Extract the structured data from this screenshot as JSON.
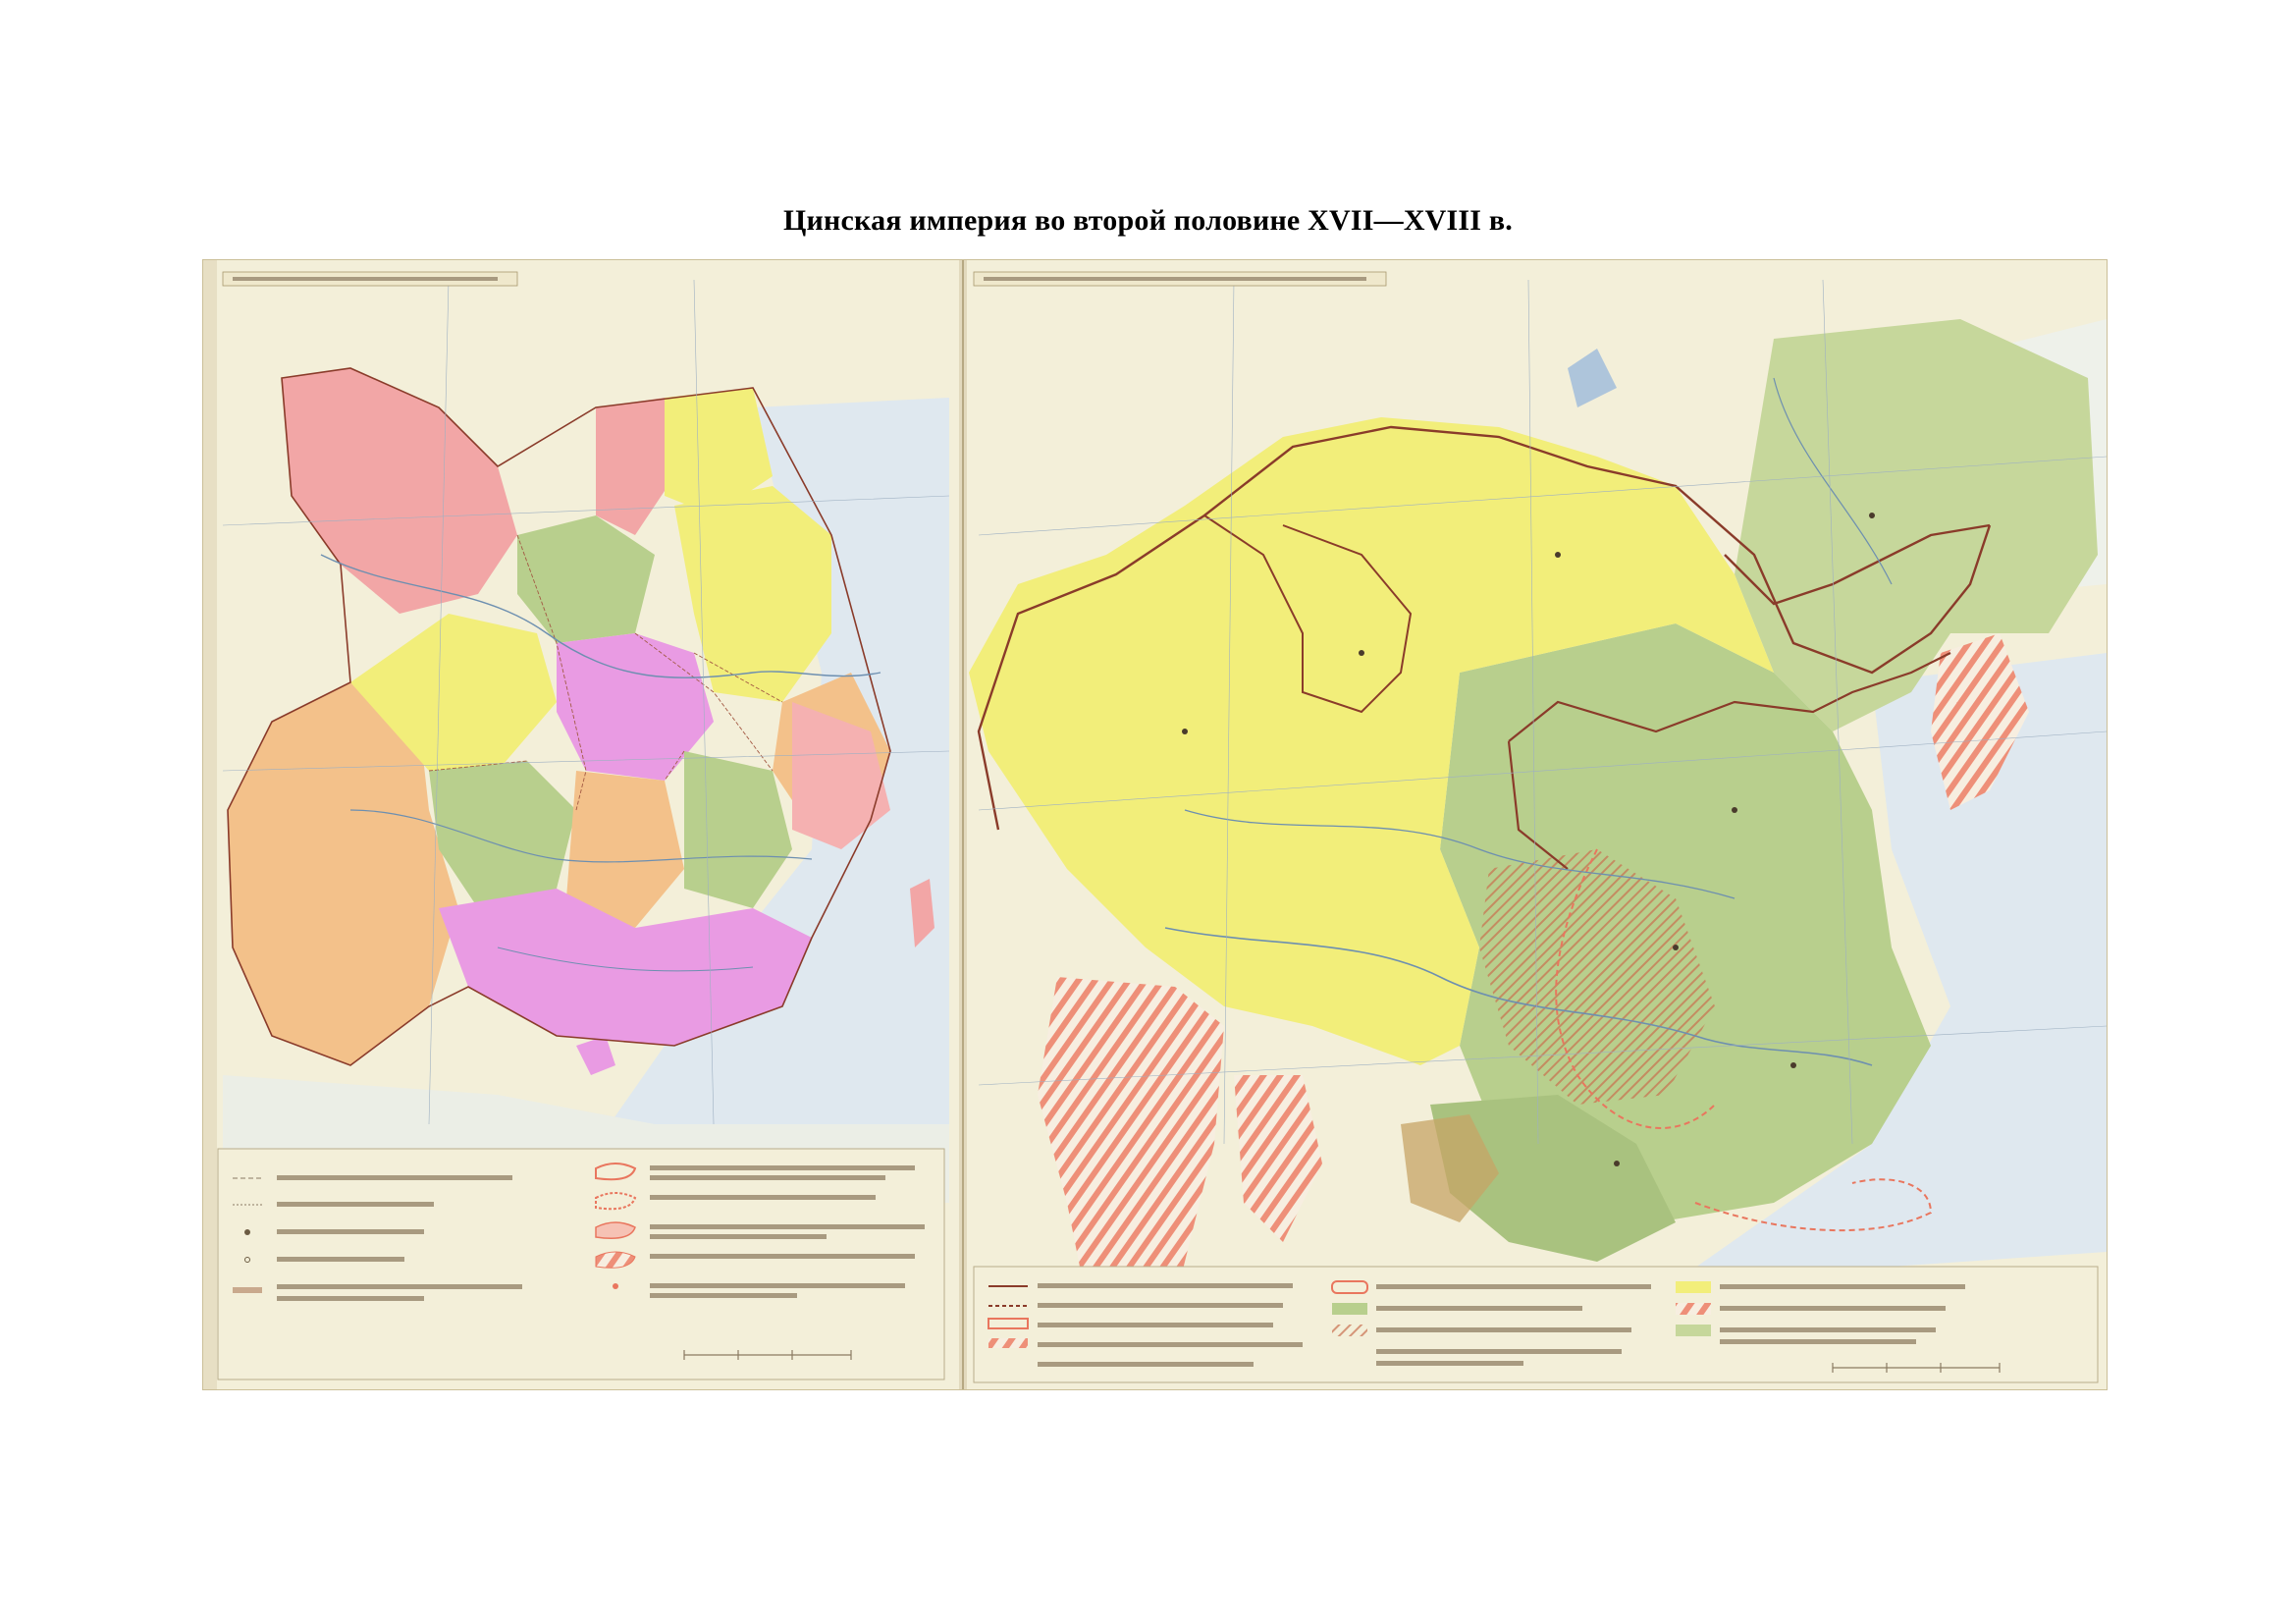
{
  "title": "Цинская империя во второй половине XVII—XVIII в.",
  "colors": {
    "background": "#ffffff",
    "map_paper": "#f3efd9",
    "province_yellow": "#f2ee7a",
    "province_pink": "#f2a6a6",
    "province_magenta": "#e99be3",
    "province_green": "#b8cf8d",
    "province_orange": "#f3c18a",
    "border_brown": "#8a3b2a",
    "sea": "#dfe8ef",
    "hatch_red": "#e9765e"
  }
}
